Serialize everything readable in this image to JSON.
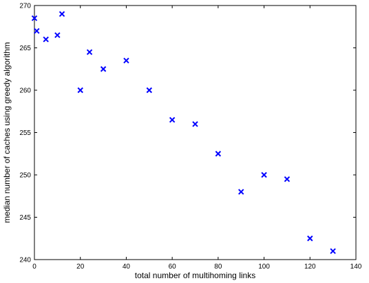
{
  "chart_data": {
    "type": "scatter",
    "title": "",
    "xlabel": "total number of multihoming links",
    "ylabel": "median number of caches using greedy algorithm",
    "xlim": [
      0,
      140
    ],
    "ylim": [
      240,
      270
    ],
    "xticks": [
      0,
      20,
      40,
      60,
      80,
      100,
      120,
      140
    ],
    "yticks": [
      240,
      245,
      250,
      255,
      260,
      265,
      270
    ],
    "grid": false,
    "marker": "x",
    "color": "#0000ff",
    "series": [
      {
        "x": [
          0,
          1,
          5,
          10,
          12,
          20,
          24,
          30,
          40,
          50,
          60,
          70,
          80,
          90,
          100,
          110,
          120,
          130
        ],
        "y": [
          268.5,
          267,
          266,
          266.5,
          269,
          260,
          264.5,
          262.5,
          263.5,
          260,
          256.5,
          256,
          252.5,
          248,
          250,
          249.5,
          242.5,
          241
        ]
      }
    ]
  }
}
